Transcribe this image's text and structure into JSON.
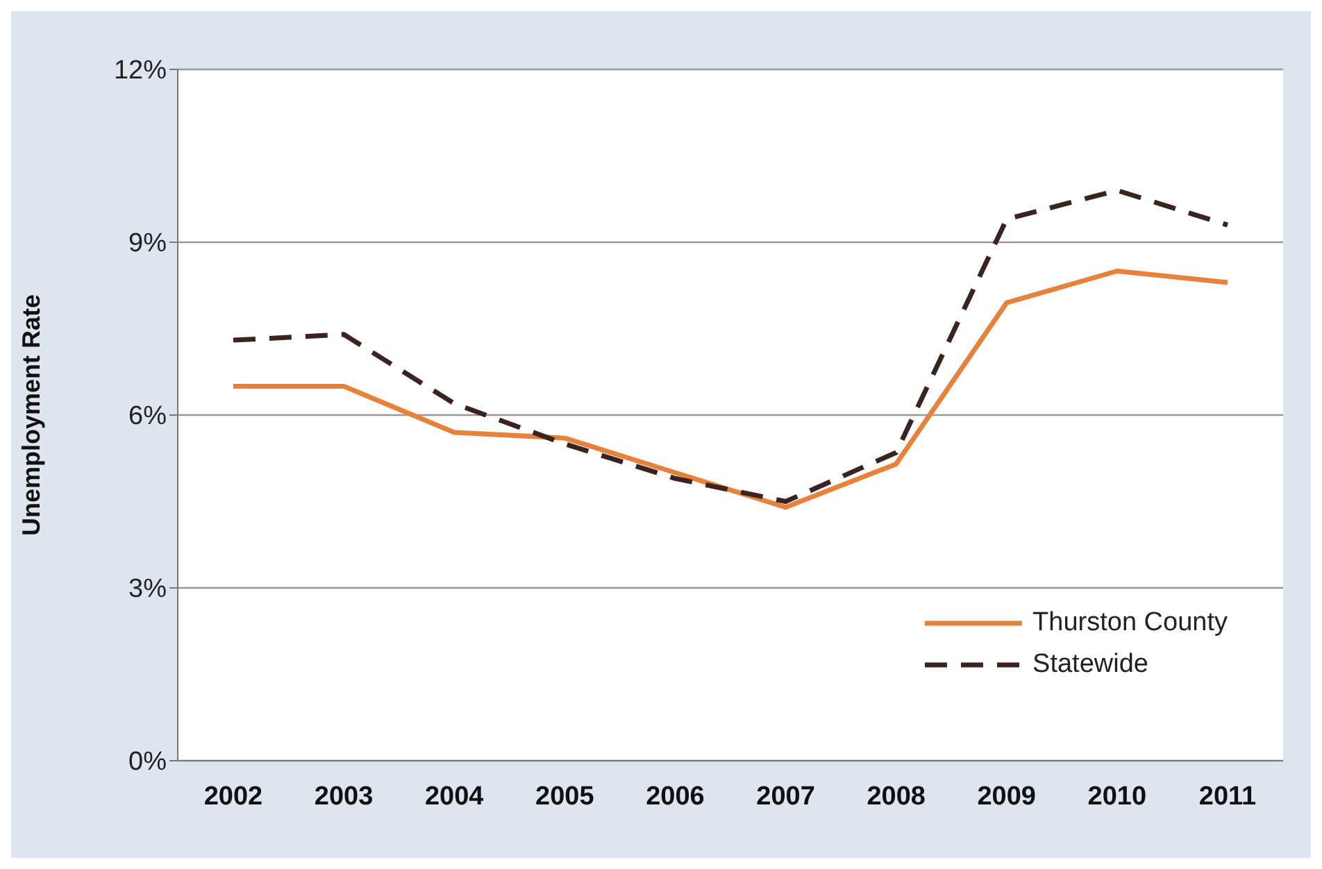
{
  "chart_data": {
    "type": "line",
    "ylabel": "Unemployment Rate",
    "categories": [
      "2002",
      "2003",
      "2004",
      "2005",
      "2006",
      "2007",
      "2008",
      "2009",
      "2010",
      "2011"
    ],
    "series": [
      {
        "name": "Thurston County",
        "color": "#e8823a",
        "line_style": "solid",
        "values": [
          6.5,
          6.5,
          5.7,
          5.6,
          5.0,
          4.4,
          5.15,
          7.95,
          8.5,
          8.3
        ]
      },
      {
        "name": "Statewide",
        "color": "#3b2420",
        "line_style": "dashed",
        "values": [
          7.3,
          7.4,
          6.2,
          5.5,
          4.9,
          4.5,
          5.35,
          9.4,
          9.9,
          9.3
        ]
      }
    ],
    "ylim": [
      0,
      12
    ],
    "yticks": [
      {
        "value": 0,
        "label": "0%"
      },
      {
        "value": 3,
        "label": "3%"
      },
      {
        "value": 6,
        "label": "6%"
      },
      {
        "value": 9,
        "label": "9%"
      },
      {
        "value": 12,
        "label": "12%"
      }
    ],
    "grid": "y",
    "legend": "bottom right",
    "marker": "none"
  }
}
